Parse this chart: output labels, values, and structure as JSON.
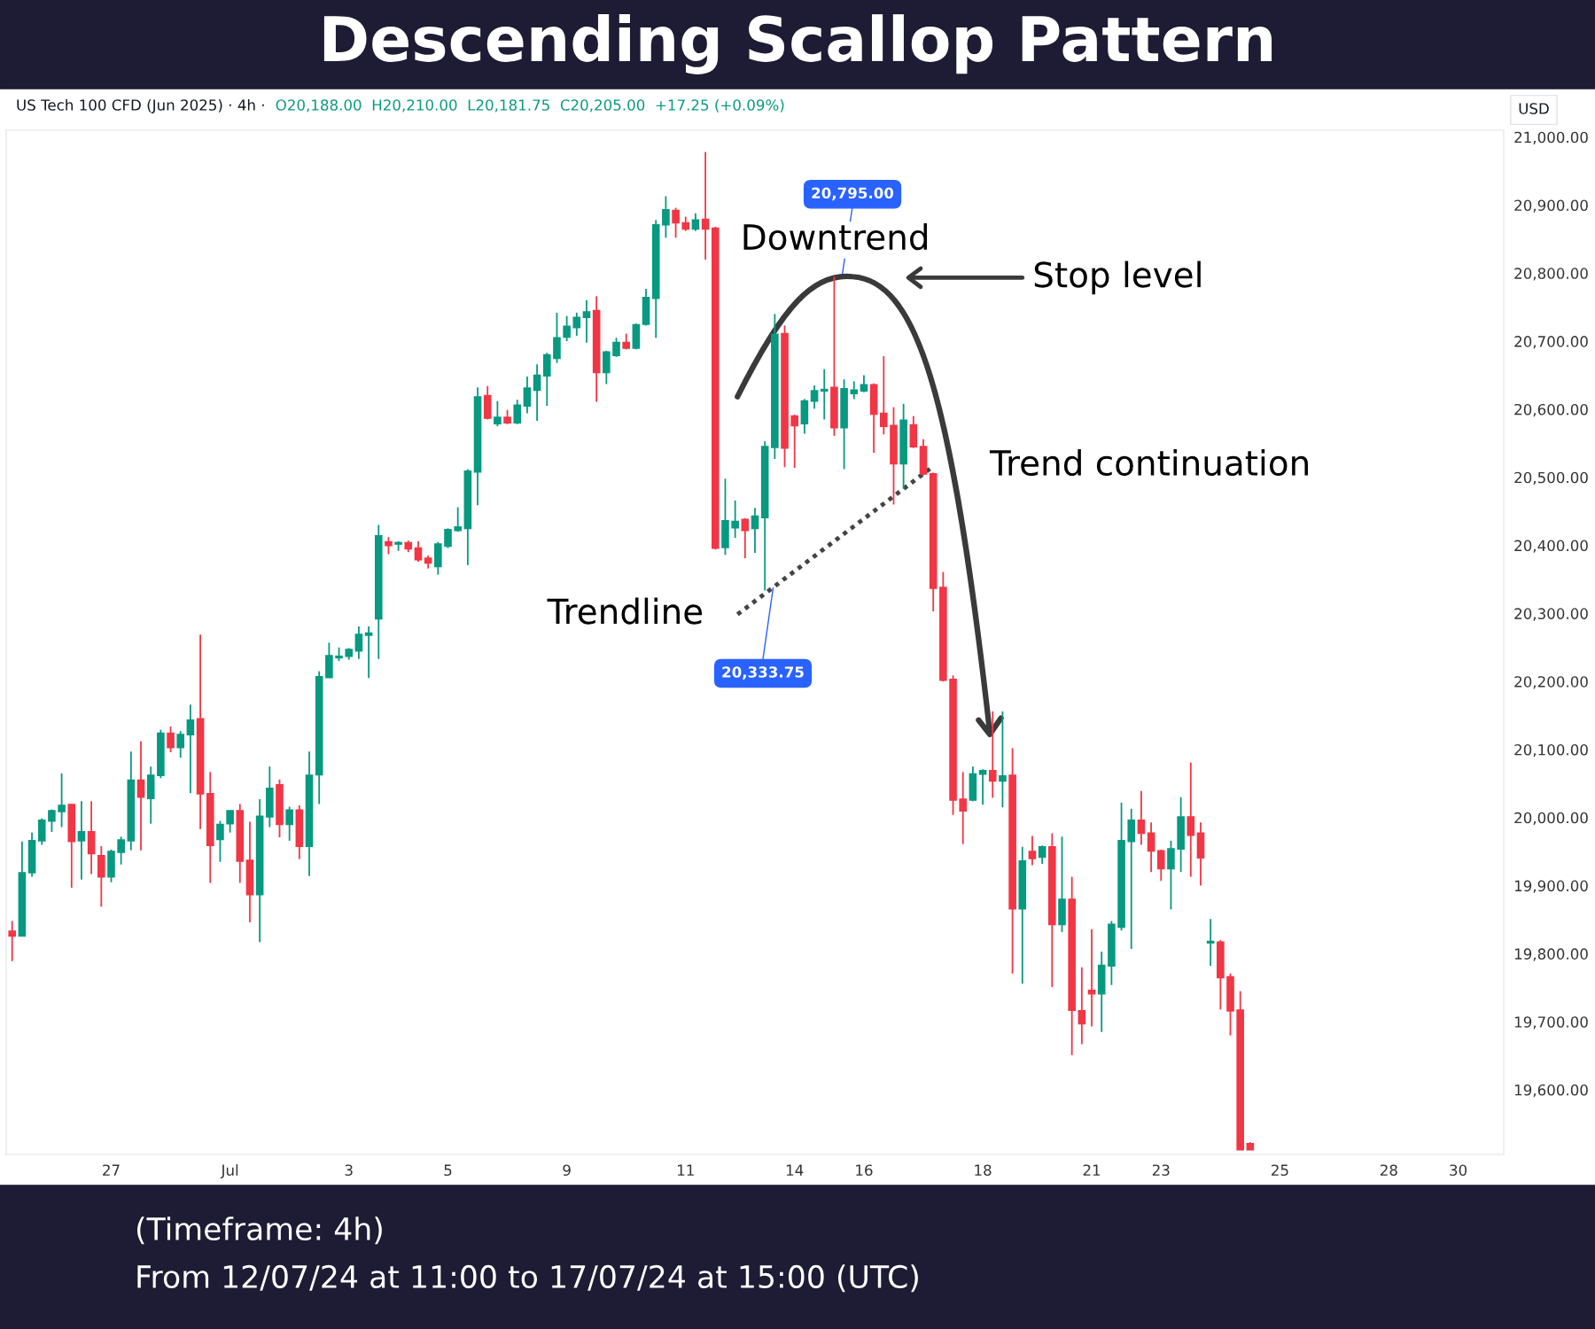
{
  "chart_data": {
    "type": "candlestick",
    "title": "Descending Scallop Pattern",
    "subtitle": "US Tech 100 CFD (Jun 2025) · 4h ·",
    "annotations": [
      "O20,188.00  H20,210.00  L20,181.75  C20,205.00  +17.25 (+0.09%)",
      "USD",
      "Downtrend",
      "Stop level",
      "Trend continuation",
      "Trendline",
      "20,795.00",
      "20,333.75",
      "(Timeframe: 4h)",
      "From 12/07/24 at 11:00 to 17/07/24 at 15:00 (UTC)"
    ],
    "categories": [
      null,
      null,
      null,
      null,
      null,
      null,
      null,
      null,
      null,
      null,
      "27",
      null,
      null,
      null,
      null,
      null,
      null,
      null,
      null,
      null,
      null,
      null,
      "Jul",
      null,
      null,
      null,
      null,
      null,
      null,
      null,
      null,
      null,
      null,
      null,
      "3",
      null,
      null,
      null,
      null,
      null,
      null,
      null,
      null,
      null,
      "5",
      null,
      null,
      null,
      null,
      null,
      null,
      null,
      null,
      null,
      null,
      null,
      "9",
      null,
      null,
      null,
      null,
      null,
      null,
      null,
      null,
      null,
      null,
      null,
      "11",
      null,
      null,
      null,
      null,
      null,
      null,
      null,
      null,
      null,
      null,
      "14",
      null,
      null,
      null,
      null,
      null,
      null,
      "16",
      null,
      null,
      null,
      null,
      null,
      null,
      null,
      null,
      null,
      null,
      null,
      "18",
      null,
      null,
      null,
      null,
      null,
      null,
      null,
      null,
      null,
      null,
      "21",
      null,
      null,
      null,
      null,
      null,
      null,
      "23",
      null,
      null,
      null,
      null,
      null,
      null,
      null,
      null,
      null,
      null,
      null,
      "25",
      null,
      null,
      null,
      null,
      null,
      null,
      null,
      null,
      null,
      null,
      "28",
      null,
      null,
      null,
      null,
      null,
      null,
      "30",
      null,
      null,
      null,
      null
    ],
    "colors": [
      "#f23645",
      "#089981",
      "#089981",
      "#089981",
      "#089981",
      "#089981",
      "#f23645",
      "#089981",
      "#f23645",
      "#f23645",
      "#089981",
      "#089981",
      "#089981",
      "#f23645",
      "#089981",
      "#089981",
      "#f23645",
      "#089981",
      "#089981",
      "#f23645",
      "#f23645",
      "#089981",
      "#089981",
      "#f23645",
      "#f23645",
      "#089981",
      "#089981",
      "#f23645",
      "#089981",
      "#f23645",
      "#089981",
      "#089981",
      "#089981",
      "#089981",
      "#089981",
      "#089981",
      "#089981",
      "#089981",
      "#f23645",
      "#089981",
      "#f23645",
      "#f23645",
      "#f23645",
      "#089981",
      "#089981",
      "#089981",
      "#089981",
      "#089981",
      "#f23645",
      "#089981",
      "#f23645",
      "#089981",
      "#089981",
      "#089981",
      "#089981",
      "#089981",
      "#089981",
      "#089981",
      "#089981",
      "#f23645",
      "#089981",
      "#089981",
      "#f23645",
      "#089981",
      "#089981",
      "#089981",
      "#089981",
      "#f23645",
      "#f23645",
      "#089981",
      "#f23645",
      "#f23645",
      "#089981",
      "#089981",
      "#f23645",
      "#089981",
      "#089981",
      "#089981",
      "#f23645",
      "#f23645",
      "#089981",
      "#089981",
      "#089981",
      "#f23645",
      "#089981",
      "#089981",
      "#089981",
      "#f23645",
      "#f23645",
      "#f23645",
      "#089981",
      "#f23645",
      "#f23645",
      "#f23645",
      "#f23645",
      "#f23645",
      "#f23645",
      "#089981",
      "#089981",
      "#f23645",
      "#089981",
      "#f23645",
      "#089981",
      "#f23645",
      "#089981",
      "#f23645",
      "#089981",
      "#f23645",
      "#f23645",
      "#f23645",
      "#089981",
      "#089981",
      "#089981",
      "#089981",
      "#f23645",
      "#f23645",
      "#f23645",
      "#089981",
      "#089981",
      "#f23645",
      "#f23645",
      "#089981",
      "#f23645",
      "#f23645",
      "#f23645",
      "#f23645",
      null,
      null,
      null,
      null,
      null,
      null,
      null,
      null,
      null,
      null,
      null,
      null,
      null,
      null,
      null,
      null,
      null,
      null,
      null,
      null,
      null,
      null,
      null,
      null,
      null
    ],
    "ohlc": [
      [
        19833,
        19848,
        19789,
        19826
      ],
      [
        19826,
        19965,
        19826,
        19919
      ],
      [
        19919,
        19978,
        19913,
        19966
      ],
      [
        19966,
        19999,
        19960,
        19996
      ],
      [
        19995,
        20012,
        19979,
        20010
      ],
      [
        20009,
        20065,
        19986,
        20018
      ],
      [
        20019,
        20020,
        19897,
        19965
      ],
      [
        19966,
        20024,
        19909,
        19979
      ],
      [
        19979,
        20024,
        19917,
        19947
      ],
      [
        19944,
        19958,
        19869,
        19913
      ],
      [
        19913,
        19953,
        19905,
        19950
      ],
      [
        19949,
        19972,
        19931,
        19967
      ],
      [
        19966,
        20097,
        19952,
        20055
      ],
      [
        20055,
        20112,
        19952,
        20030
      ],
      [
        20028,
        20075,
        19991,
        20062
      ],
      [
        20062,
        20129,
        20058,
        20124
      ],
      [
        20124,
        20134,
        20096,
        20103
      ],
      [
        20103,
        20127,
        20088,
        20122
      ],
      [
        20122,
        20166,
        20036,
        20143
      ],
      [
        20145,
        20269,
        19983,
        20035
      ],
      [
        20035,
        20067,
        19904,
        19959
      ],
      [
        19968,
        19995,
        19935,
        19990
      ],
      [
        19991,
        20010,
        19978,
        20010
      ],
      [
        20010,
        20020,
        19904,
        19936
      ],
      [
        19937,
        19994,
        19846,
        19887
      ],
      [
        19887,
        20027,
        19817,
        20002
      ],
      [
        20001,
        20075,
        19986,
        20043
      ],
      [
        20048,
        20056,
        19971,
        19990
      ],
      [
        19990,
        20016,
        19966,
        20011
      ],
      [
        20011,
        20018,
        19939,
        19958
      ],
      [
        19958,
        20097,
        19914,
        20062
      ],
      [
        20063,
        20215,
        20020,
        20207
      ],
      [
        20206,
        20257,
        20206,
        20238
      ],
      [
        20235,
        20250,
        20230,
        20237
      ],
      [
        20237,
        20249,
        20232,
        20247
      ],
      [
        20245,
        20281,
        20233,
        20269
      ],
      [
        20268,
        20281,
        20205,
        20271
      ],
      [
        20292,
        20430,
        20233,
        20414
      ],
      [
        20405,
        20412,
        20387,
        20400
      ],
      [
        20402,
        20406,
        20392,
        20404
      ],
      [
        20404,
        20407,
        20390,
        20395
      ],
      [
        20396,
        20406,
        20376,
        20379
      ],
      [
        20381,
        20385,
        20366,
        20374
      ],
      [
        20369,
        20405,
        20357,
        20402
      ],
      [
        20399,
        20425,
        20396,
        20423
      ],
      [
        20422,
        20456,
        20420,
        20427
      ],
      [
        20425,
        20512,
        20371,
        20509
      ],
      [
        20508,
        20632,
        20459,
        20618
      ],
      [
        20620,
        20634,
        20585,
        20587
      ],
      [
        20579,
        20612,
        20575,
        20588
      ],
      [
        20588,
        20599,
        20578,
        20580
      ],
      [
        20580,
        20614,
        20578,
        20606
      ],
      [
        20605,
        20648,
        20594,
        20631
      ],
      [
        20628,
        20666,
        20583,
        20650
      ],
      [
        20649,
        20683,
        20605,
        20680
      ],
      [
        20675,
        20742,
        20668,
        20705
      ],
      [
        20706,
        20737,
        20700,
        20722
      ],
      [
        20720,
        20742,
        20708,
        20735
      ],
      [
        20735,
        20760,
        20698,
        20743
      ],
      [
        20745,
        20766,
        20611,
        20654
      ],
      [
        20654,
        20686,
        20637,
        20684
      ],
      [
        20679,
        20705,
        20677,
        20698
      ],
      [
        20698,
        20711,
        20688,
        20690
      ],
      [
        20690,
        20726,
        20688,
        20724
      ],
      [
        20725,
        20777,
        20723,
        20764
      ],
      [
        20763,
        20878,
        20705,
        20871
      ],
      [
        20871,
        20913,
        20852,
        20893
      ],
      [
        20892,
        20896,
        20852,
        20874
      ],
      [
        20874,
        20883,
        20862,
        20865
      ],
      [
        20865,
        20888,
        20862,
        20878
      ],
      [
        20879,
        20978,
        20820,
        20865
      ],
      [
        20866,
        20868,
        20394,
        20396
      ],
      [
        20397,
        20498,
        20386,
        20436
      ],
      [
        20426,
        20466,
        20411,
        20435
      ],
      [
        20438,
        20440,
        20381,
        20422
      ],
      [
        20425,
        20455,
        20389,
        20443
      ],
      [
        20441,
        20553,
        20333.75,
        20545
      ],
      [
        20544,
        20740,
        20527,
        20710
      ],
      [
        20711,
        20723,
        20515,
        20543
      ],
      [
        20590,
        20592,
        20514,
        20576
      ],
      [
        20579,
        20615,
        20564,
        20612
      ],
      [
        20612,
        20635,
        20601,
        20627
      ],
      [
        20627,
        20659,
        20585,
        20629
      ],
      [
        20632,
        20795,
        20561,
        20573
      ],
      [
        20573,
        20644,
        20512,
        20630
      ],
      [
        20623,
        20641,
        20615,
        20628
      ],
      [
        20627,
        20650,
        20625,
        20636
      ],
      [
        20636,
        20638,
        20536,
        20593
      ],
      [
        20594,
        20678,
        20563,
        20575
      ],
      [
        20576,
        20603,
        20460,
        20520
      ],
      [
        20520,
        20608,
        20483,
        20584
      ],
      [
        20577,
        20590,
        20543,
        20545
      ],
      [
        20545,
        20556,
        20503,
        20505
      ],
      [
        20505,
        20507,
        20303,
        20337
      ],
      [
        20338,
        20361,
        20200,
        20202
      ],
      [
        20203,
        20209,
        20004,
        20026
      ],
      [
        20027,
        20067,
        19961,
        20010
      ],
      [
        20026,
        20075,
        20024,
        20064
      ],
      [
        20064,
        20071,
        20019,
        20069
      ],
      [
        20069,
        20156,
        20029,
        20054
      ],
      [
        20054,
        20156,
        20015,
        20061
      ],
      [
        20062,
        20102,
        19771,
        19866
      ],
      [
        19866,
        19957,
        19756,
        19936
      ],
      [
        19950,
        19973,
        19930,
        19940
      ],
      [
        19942,
        19959,
        19932,
        19957
      ],
      [
        19957,
        19977,
        19751,
        19843
      ],
      [
        19843,
        19972,
        19832,
        19880
      ],
      [
        19880,
        19913,
        19651,
        19717
      ],
      [
        19716,
        19780,
        19667,
        19697
      ],
      [
        19746,
        19836,
        19693,
        19741
      ],
      [
        19741,
        19803,
        19685,
        19783
      ],
      [
        19782,
        19848,
        19754,
        19843
      ],
      [
        19839,
        20022,
        19834,
        19966
      ],
      [
        19965,
        20013,
        19807,
        19996
      ],
      [
        19996,
        20039,
        19960,
        19977
      ],
      [
        19977,
        19993,
        19920,
        19951
      ],
      [
        19951,
        19953,
        19907,
        19925
      ],
      [
        19925,
        19966,
        19865,
        19954
      ],
      [
        19954,
        20030,
        19920,
        20001
      ],
      [
        20001,
        20081,
        19913,
        19974
      ],
      [
        19977,
        19993,
        19900,
        19941
      ],
      [
        19816,
        19851,
        19782,
        19818
      ],
      [
        19817,
        19820,
        19718,
        19765
      ],
      [
        19766,
        19771,
        19680,
        19716
      ],
      [
        19717,
        19745,
        19512,
        19512
      ],
      [
        19521,
        19523,
        19512,
        19512
      ],
      null,
      null,
      null,
      null,
      null,
      null,
      null,
      null,
      null,
      null,
      null,
      null,
      null,
      null,
      null,
      null,
      null,
      null,
      null,
      null,
      null,
      null,
      null,
      null,
      null
    ],
    "ylim": [
      19505,
      21010
    ],
    "yticks": [
      {
        "value": 19600,
        "label": "19,600.00"
      },
      {
        "value": 19700,
        "label": "19,700.00"
      },
      {
        "value": 19800,
        "label": "19,800.00"
      },
      {
        "value": 19900,
        "label": "19,900.00"
      },
      {
        "value": 20000,
        "label": "20,000.00"
      },
      {
        "value": 20100,
        "label": "20,100.00"
      },
      {
        "value": 20200,
        "label": "20,200.00"
      },
      {
        "value": 20300,
        "label": "20,300.00"
      },
      {
        "value": 20400,
        "label": "20,400.00"
      },
      {
        "value": 20500,
        "label": "20,500.00"
      },
      {
        "value": 20600,
        "label": "20,600.00"
      },
      {
        "value": 20700,
        "label": "20,700.00"
      },
      {
        "value": 20800,
        "label": "20,800.00"
      },
      {
        "value": 20900,
        "label": "20,900.00"
      },
      {
        "value": 21000,
        "label": "21,000.00"
      }
    ],
    "grid": false
  }
}
